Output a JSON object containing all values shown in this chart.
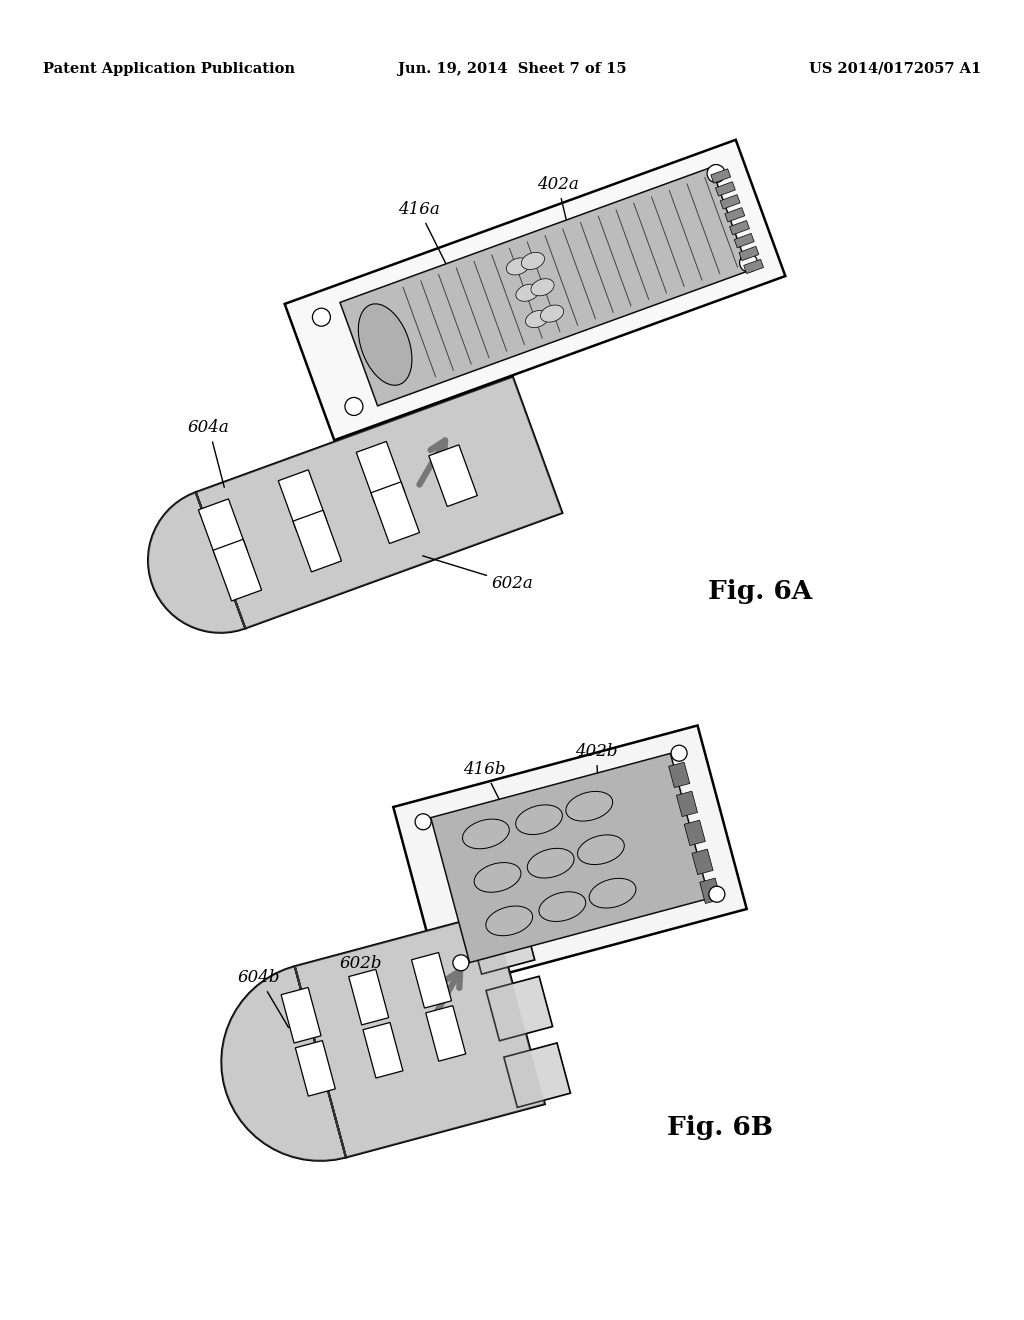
{
  "background_color": "#ffffff",
  "header_left": "Patent Application Publication",
  "header_center": "Jun. 19, 2014  Sheet 7 of 15",
  "header_right": "US 2014/0172057 A1",
  "header_fontsize": 10.5,
  "fig6a_label": "Fig. 6A",
  "fig6b_label": "Fig. 6B",
  "fig_label_fontsize": 19,
  "annotation_fontsize": 12,
  "arrow_color": "#888888",
  "device_outer_color": "#f5f5f5",
  "device_inner_color": "#cccccc",
  "backing_color": "#d8d8d8",
  "slot_color": "#ffffff",
  "hatch_color": "#999999"
}
